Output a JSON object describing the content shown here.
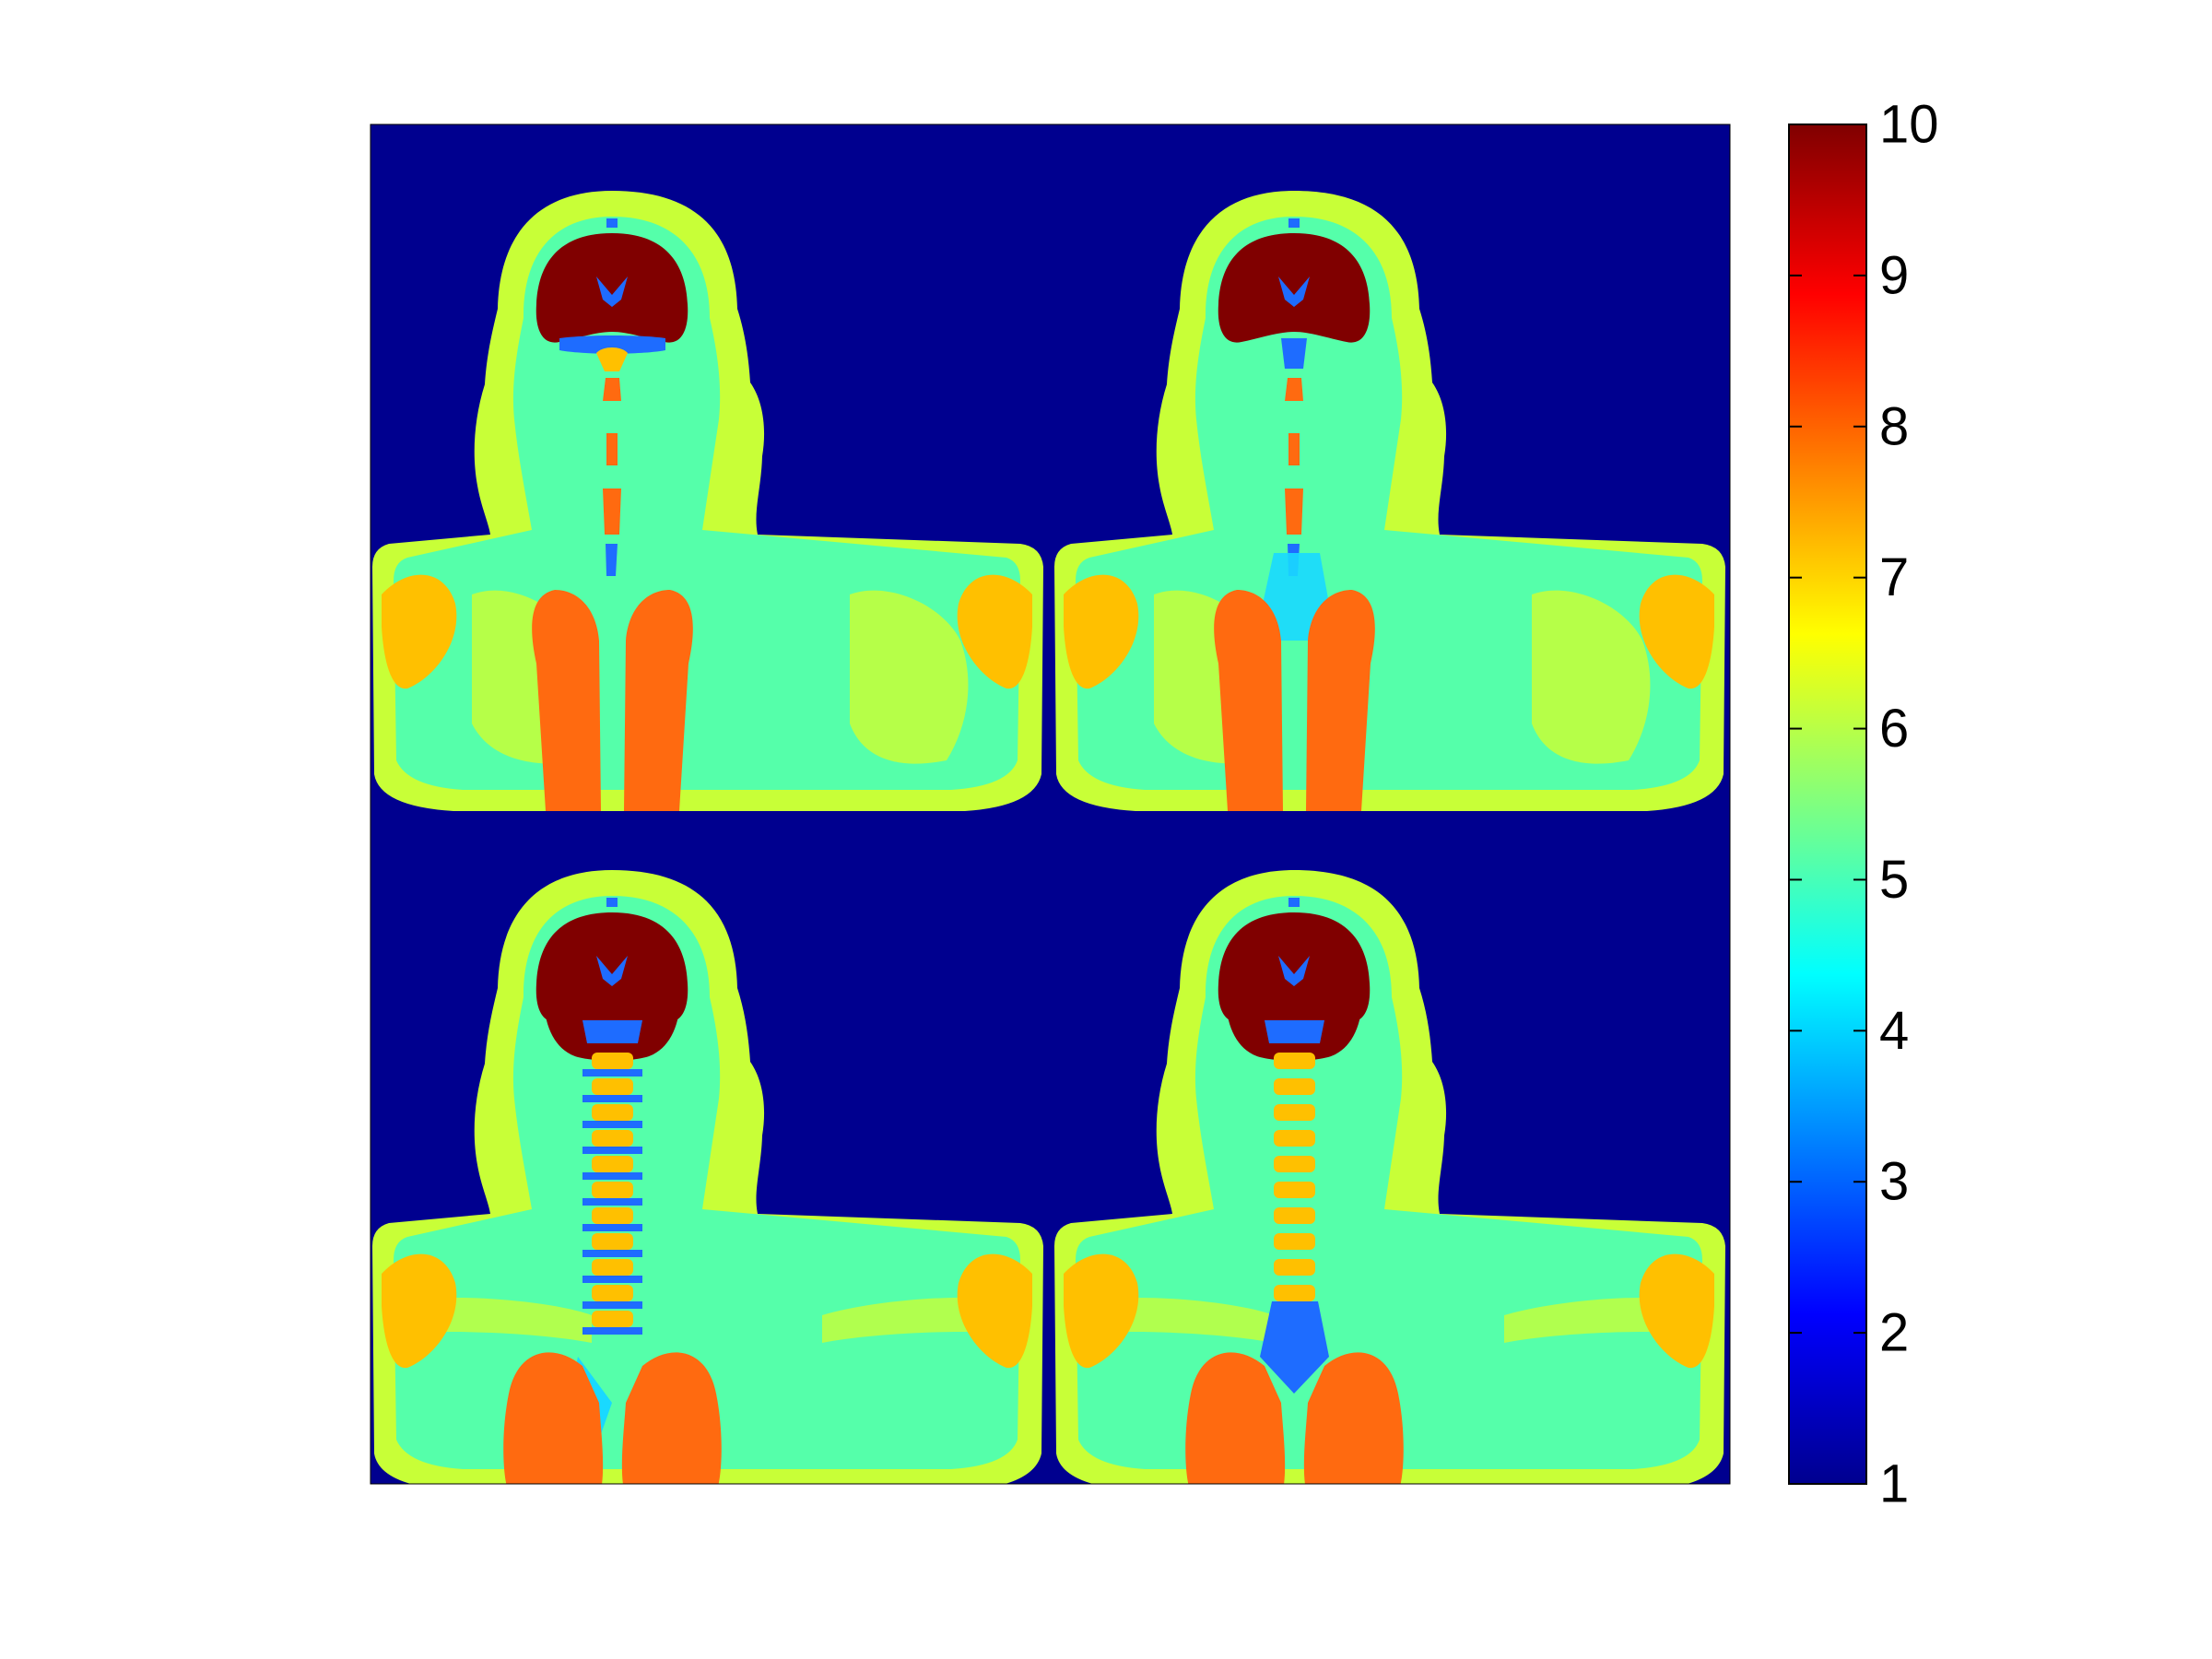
{
  "figure": {
    "kind": "segmented anatomical label map, 2x2 coronal slices of head, neck and upper torso",
    "background_label": 1,
    "panels": [
      {
        "name": "top-left"
      },
      {
        "name": "top-right"
      },
      {
        "name": "bottom-left"
      },
      {
        "name": "bottom-right"
      }
    ]
  },
  "colorbar": {
    "colormap": "jet",
    "min": 1,
    "max": 10,
    "ticks": [
      "10",
      "9",
      "8",
      "7",
      "6",
      "5",
      "4",
      "3",
      "2",
      "1"
    ]
  },
  "colors": {
    "label_1": "#00008f",
    "label_3": "#1e6cff",
    "label_4": "#19d9ff",
    "label_5": "#55ffaa",
    "label_6": "#c8ff37",
    "label_7": "#ffc000",
    "label_8": "#ff6a10",
    "label_10": "#800000"
  }
}
